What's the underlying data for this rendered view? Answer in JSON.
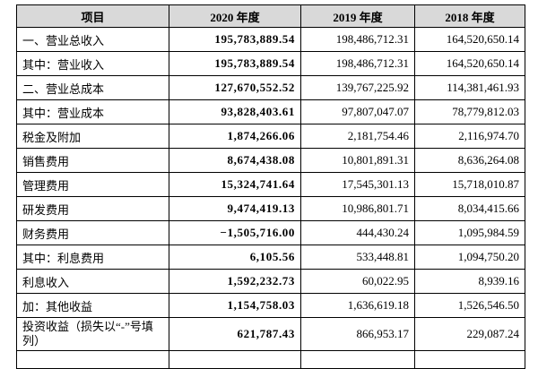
{
  "table": {
    "header": [
      "项目",
      "2020 年度",
      "2019 年度",
      "2018 年度"
    ],
    "rows": [
      [
        "一、营业总收入",
        "195,783,889.54",
        "198,486,712.31",
        "164,520,650.14"
      ],
      [
        "其中：营业收入",
        "195,783,889.54",
        "198,486,712.31",
        "164,520,650.14"
      ],
      [
        "二、营业总成本",
        "127,670,552.52",
        "139,767,225.92",
        "114,381,461.93"
      ],
      [
        "其中：营业成本",
        "93,828,403.61",
        "97,807,047.07",
        "78,779,812.03"
      ],
      [
        "税金及附加",
        "1,874,266.06",
        "2,181,754.46",
        "2,116,974.70"
      ],
      [
        "销售费用",
        "8,674,438.08",
        "10,801,891.31",
        "8,636,264.08"
      ],
      [
        "管理费用",
        "15,324,741.64",
        "17,545,301.13",
        "15,718,010.87"
      ],
      [
        "研发费用",
        "9,474,419.13",
        "10,986,801.71",
        "8,034,415.66"
      ],
      [
        "财务费用",
        "−1,505,716.00",
        "444,430.24",
        "1,095,984.59"
      ],
      [
        "其中：利息费用",
        "6,105.56",
        "533,448.81",
        "1,094,750.20"
      ],
      [
        "利息收入",
        "1,592,232.73",
        "60,022.95",
        "8,939.16"
      ],
      [
        "加：其他收益",
        "1,154,758.03",
        "1,636,619.18",
        "1,526,546.50"
      ],
      [
        "投资收益（损失以“-”号填列）",
        "621,787.43",
        "866,953.17",
        "229,087.24"
      ]
    ]
  }
}
